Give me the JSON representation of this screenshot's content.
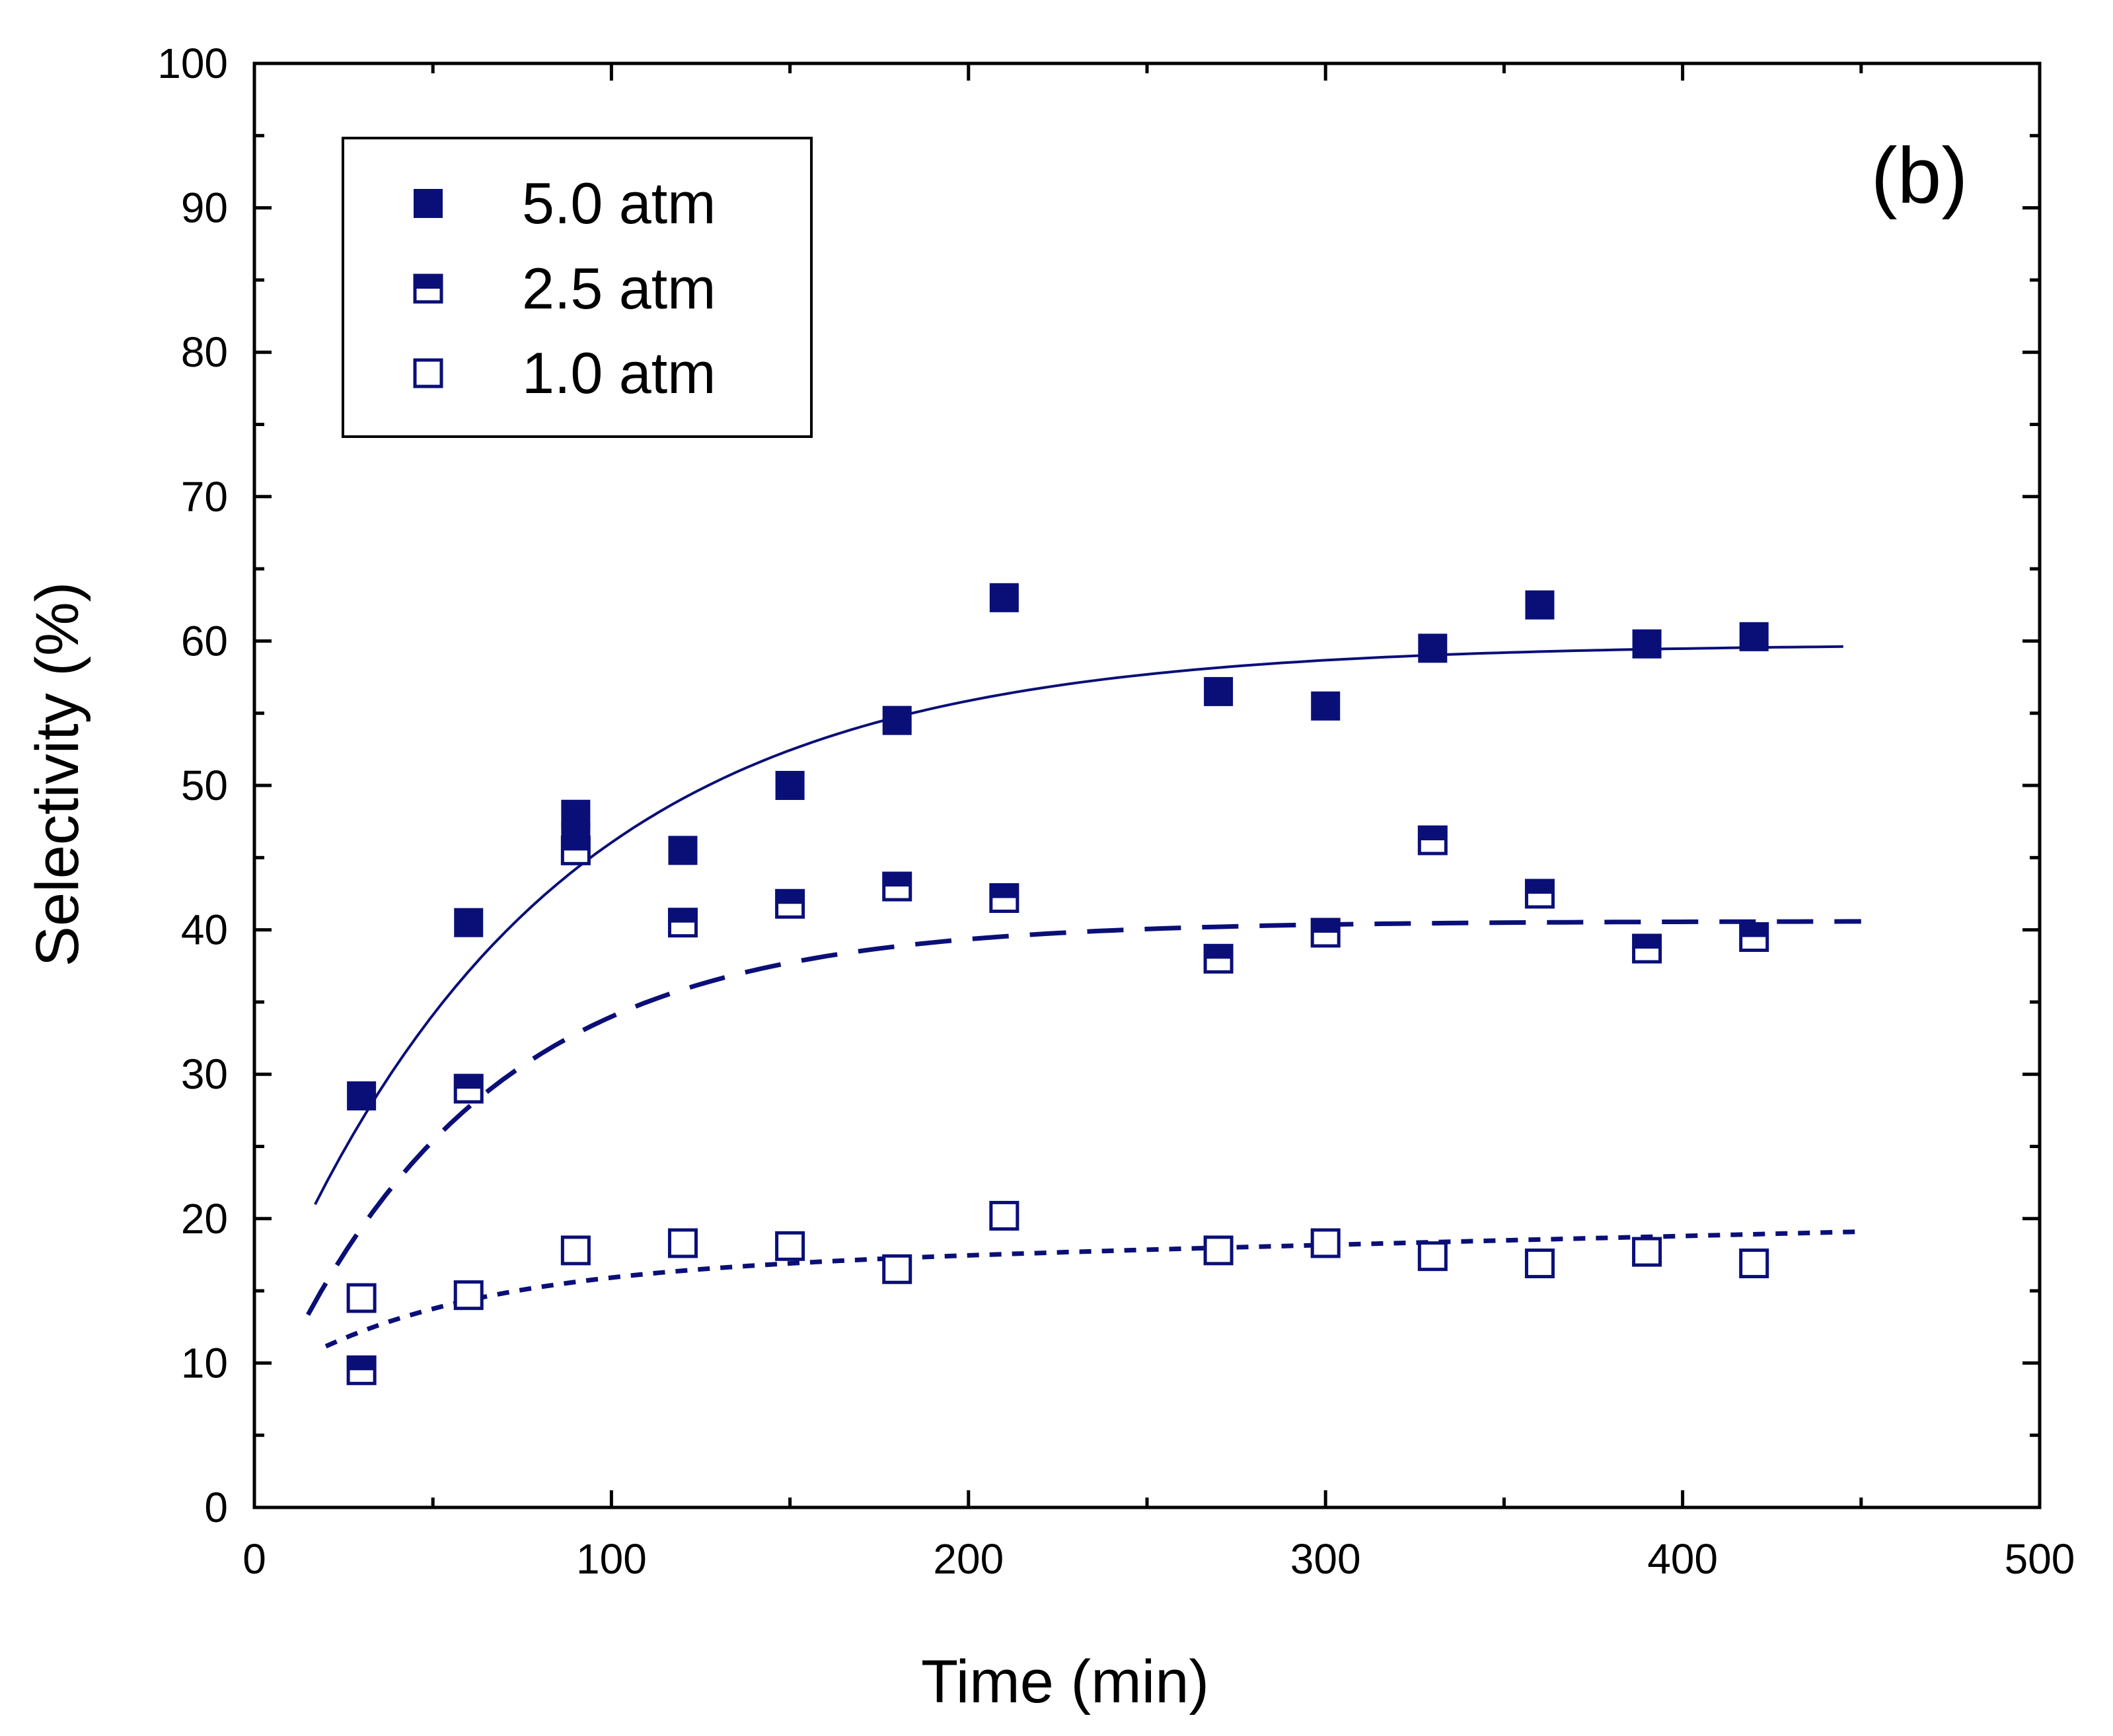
{
  "chart_data": {
    "type": "scatter",
    "panel_label": "(b)",
    "xlabel": "Time (min)",
    "ylabel": "Selectivity (%)",
    "xlim": [
      0,
      500
    ],
    "ylim": [
      0,
      100
    ],
    "x_ticks": [
      0,
      100,
      200,
      300,
      400,
      500
    ],
    "y_ticks": [
      0,
      10,
      20,
      30,
      40,
      50,
      60,
      70,
      80,
      90,
      100
    ],
    "grid": false,
    "legend_position": "top-left",
    "color": "#0a0f78",
    "series": [
      {
        "name": "5.0 atm",
        "marker": "filled-square",
        "fit_style": "solid",
        "x": [
          30,
          60,
          90,
          90,
          120,
          150,
          180,
          210,
          270,
          300,
          330,
          360,
          390,
          420
        ],
        "y": [
          28.5,
          40.5,
          48,
          46.5,
          45.5,
          50,
          54.5,
          63,
          56.5,
          55.5,
          59.5,
          62.5,
          59.8,
          60.3
        ],
        "fit": {
          "model": "y = A - B*exp(-x/tau)",
          "A": 59.8,
          "B": 48.0,
          "tau": 80,
          "x_range": [
            17,
            445
          ]
        }
      },
      {
        "name": "2.5 atm",
        "marker": "half-filled-square",
        "fit_style": "dashed",
        "x": [
          30,
          60,
          90,
          120,
          150,
          180,
          210,
          270,
          300,
          330,
          360,
          390,
          420
        ],
        "y": [
          9.5,
          29,
          45.5,
          40.5,
          41.8,
          43,
          42.2,
          38,
          39.8,
          46.2,
          42.5,
          38.7,
          39.5
        ],
        "fit": {
          "model": "y = A - B*exp(-x/tau)",
          "A": 40.6,
          "B": 35.0,
          "tau": 60,
          "x_range": [
            15,
            450
          ]
        }
      },
      {
        "name": "1.0 atm",
        "marker": "open-square",
        "fit_style": "dotted",
        "x": [
          30,
          60,
          90,
          120,
          150,
          180,
          210,
          270,
          300,
          330,
          360,
          390,
          420
        ],
        "y": [
          14.5,
          14.7,
          17.8,
          18.3,
          18.1,
          16.5,
          20.2,
          17.8,
          18.3,
          17.4,
          16.9,
          17.7,
          16.9
        ],
        "fit": {
          "model": "y = A - B*exp(-x/tau) + C*x",
          "A": 16.4,
          "B": 8.0,
          "tau": 50,
          "C": 0.006,
          "x_range": [
            20,
            450
          ]
        }
      }
    ]
  }
}
